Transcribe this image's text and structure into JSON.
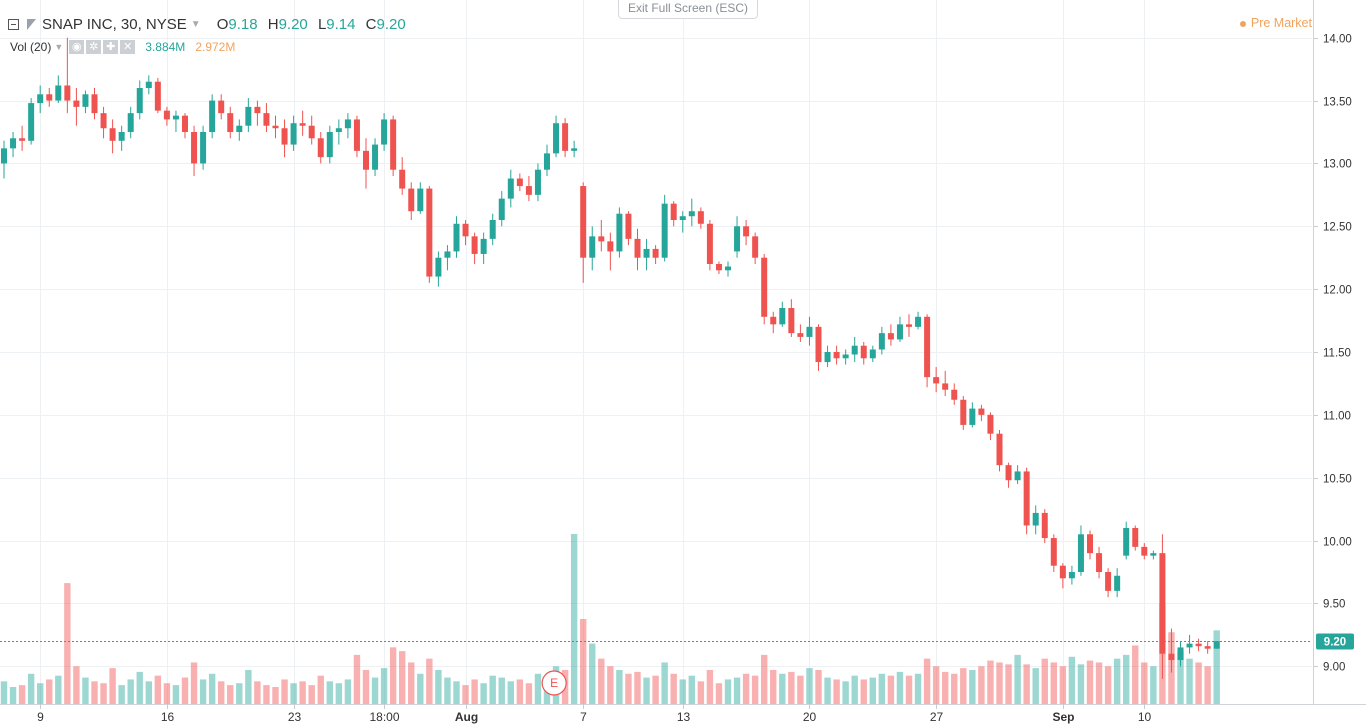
{
  "header": {
    "symbol": "SNAP INC, 30, NYSE",
    "ohlc": [
      {
        "key": "O",
        "value": "9.18"
      },
      {
        "key": "H",
        "value": "9.20"
      },
      {
        "key": "L",
        "value": "9.14"
      },
      {
        "key": "C",
        "value": "9.20"
      }
    ],
    "volume_label": "Vol (20)",
    "volume_value": "3.884M",
    "volume_ma": "2.972M",
    "toolbar_icons": [
      "eye-icon",
      "gear-icon",
      "plus-icon",
      "close-icon"
    ]
  },
  "exit_fullscreen_label": "Exit Full Screen (ESC)",
  "session_label": "Pre Market",
  "earnings_marker": "E",
  "colors": {
    "up": "#26a69a",
    "down": "#ef5350",
    "session": "#f0a35e",
    "grid": "#eef1f4",
    "price_line": "#26a69a"
  },
  "chart_data": {
    "type": "candlestick",
    "title": "SNAP INC, 30, NYSE",
    "last_price": "9.20",
    "y_ticks": [
      "14.00",
      "13.50",
      "13.00",
      "12.50",
      "12.00",
      "11.50",
      "11.00",
      "10.50",
      "10.00",
      "9.50",
      "9.00"
    ],
    "ylim": [
      8.7,
      14.3
    ],
    "x_ticks": [
      {
        "label": "9",
        "bar": 4,
        "bold": false
      },
      {
        "label": "16",
        "bar": 18,
        "bold": false
      },
      {
        "label": "23",
        "bar": 32,
        "bold": false
      },
      {
        "label": "18:00",
        "bar": 42,
        "bold": false
      },
      {
        "label": "Aug",
        "bar": 51,
        "bold": true
      },
      {
        "label": "7",
        "bar": 64,
        "bold": false
      },
      {
        "label": "13",
        "bar": 75,
        "bold": false
      },
      {
        "label": "20",
        "bar": 89,
        "bold": false
      },
      {
        "label": "27",
        "bar": 103,
        "bold": false
      },
      {
        "label": "Sep",
        "bar": 117,
        "bold": true
      },
      {
        "label": "10",
        "bar": 126,
        "bold": false
      }
    ],
    "bar_count": 135,
    "earnings_bar": 63,
    "ohlc": [
      [
        13.0,
        13.18,
        12.88,
        13.12
      ],
      [
        13.12,
        13.25,
        13.05,
        13.2
      ],
      [
        13.2,
        13.3,
        13.1,
        13.18
      ],
      [
        13.18,
        13.52,
        13.15,
        13.48
      ],
      [
        13.48,
        13.62,
        13.4,
        13.55
      ],
      [
        13.55,
        13.6,
        13.45,
        13.5
      ],
      [
        13.5,
        13.7,
        13.48,
        13.62
      ],
      [
        13.62,
        14.0,
        13.4,
        13.5
      ],
      [
        13.5,
        13.6,
        13.3,
        13.45
      ],
      [
        13.45,
        13.58,
        13.4,
        13.55
      ],
      [
        13.55,
        13.6,
        13.35,
        13.4
      ],
      [
        13.4,
        13.45,
        13.2,
        13.28
      ],
      [
        13.28,
        13.35,
        13.08,
        13.18
      ],
      [
        13.18,
        13.3,
        13.1,
        13.25
      ],
      [
        13.25,
        13.45,
        13.2,
        13.4
      ],
      [
        13.4,
        13.66,
        13.35,
        13.6
      ],
      [
        13.6,
        13.7,
        13.55,
        13.65
      ],
      [
        13.65,
        13.68,
        13.4,
        13.42
      ],
      [
        13.42,
        13.45,
        13.3,
        13.35
      ],
      [
        13.35,
        13.42,
        13.25,
        13.38
      ],
      [
        13.38,
        13.4,
        13.2,
        13.25
      ],
      [
        13.25,
        13.3,
        12.9,
        13.0
      ],
      [
        13.0,
        13.3,
        12.95,
        13.25
      ],
      [
        13.25,
        13.55,
        13.2,
        13.5
      ],
      [
        13.5,
        13.55,
        13.35,
        13.4
      ],
      [
        13.4,
        13.45,
        13.2,
        13.25
      ],
      [
        13.25,
        13.35,
        13.18,
        13.3
      ],
      [
        13.3,
        13.52,
        13.25,
        13.45
      ],
      [
        13.45,
        13.5,
        13.3,
        13.4
      ],
      [
        13.4,
        13.48,
        13.25,
        13.3
      ],
      [
        13.3,
        13.38,
        13.2,
        13.28
      ],
      [
        13.28,
        13.35,
        13.05,
        13.15
      ],
      [
        13.15,
        13.38,
        13.1,
        13.32
      ],
      [
        13.32,
        13.42,
        13.22,
        13.3
      ],
      [
        13.3,
        13.38,
        13.15,
        13.2
      ],
      [
        13.2,
        13.25,
        13.0,
        13.05
      ],
      [
        13.05,
        13.3,
        13.0,
        13.25
      ],
      [
        13.25,
        13.35,
        13.15,
        13.28
      ],
      [
        13.28,
        13.4,
        13.2,
        13.35
      ],
      [
        13.35,
        13.38,
        13.05,
        13.1
      ],
      [
        13.1,
        13.2,
        12.8,
        12.95
      ],
      [
        12.95,
        13.2,
        12.9,
        13.15
      ],
      [
        13.15,
        13.4,
        13.1,
        13.35
      ],
      [
        13.35,
        13.38,
        12.9,
        12.95
      ],
      [
        12.95,
        13.05,
        12.75,
        12.8
      ],
      [
        12.8,
        12.85,
        12.55,
        12.62
      ],
      [
        12.62,
        12.85,
        12.6,
        12.8
      ],
      [
        12.8,
        12.82,
        12.05,
        12.1
      ],
      [
        12.1,
        12.3,
        12.02,
        12.25
      ],
      [
        12.25,
        12.35,
        12.15,
        12.3
      ],
      [
        12.3,
        12.58,
        12.25,
        12.52
      ],
      [
        12.52,
        12.55,
        12.35,
        12.42
      ],
      [
        12.42,
        12.45,
        12.2,
        12.28
      ],
      [
        12.28,
        12.45,
        12.2,
        12.4
      ],
      [
        12.4,
        12.6,
        12.35,
        12.55
      ],
      [
        12.55,
        12.78,
        12.5,
        12.72
      ],
      [
        12.72,
        12.95,
        12.65,
        12.88
      ],
      [
        12.88,
        12.92,
        12.78,
        12.82
      ],
      [
        12.82,
        12.9,
        12.7,
        12.75
      ],
      [
        12.75,
        13.0,
        12.7,
        12.95
      ],
      [
        12.95,
        13.15,
        12.9,
        13.08
      ],
      [
        13.08,
        13.38,
        13.05,
        13.32
      ],
      [
        13.32,
        13.36,
        13.05,
        13.1
      ],
      [
        13.1,
        13.18,
        13.05,
        13.12
      ],
      [
        12.82,
        12.85,
        12.05,
        12.25
      ],
      [
        12.25,
        12.5,
        12.15,
        12.42
      ],
      [
        12.42,
        12.55,
        12.3,
        12.38
      ],
      [
        12.38,
        12.45,
        12.15,
        12.3
      ],
      [
        12.3,
        12.65,
        12.25,
        12.6
      ],
      [
        12.6,
        12.62,
        12.35,
        12.4
      ],
      [
        12.4,
        12.48,
        12.15,
        12.25
      ],
      [
        12.25,
        12.4,
        12.15,
        12.32
      ],
      [
        12.32,
        12.35,
        12.2,
        12.25
      ],
      [
        12.25,
        12.75,
        12.22,
        12.68
      ],
      [
        12.68,
        12.7,
        12.5,
        12.55
      ],
      [
        12.55,
        12.62,
        12.45,
        12.58
      ],
      [
        12.58,
        12.72,
        12.5,
        12.62
      ],
      [
        12.62,
        12.65,
        12.48,
        12.52
      ],
      [
        12.52,
        12.55,
        12.15,
        12.2
      ],
      [
        12.2,
        12.22,
        12.12,
        12.15
      ],
      [
        12.15,
        12.22,
        12.1,
        12.18
      ],
      [
        12.3,
        12.58,
        12.25,
        12.5
      ],
      [
        12.5,
        12.55,
        12.35,
        12.42
      ],
      [
        12.42,
        12.45,
        12.2,
        12.25
      ],
      [
        12.25,
        12.28,
        11.72,
        11.78
      ],
      [
        11.78,
        11.82,
        11.65,
        11.72
      ],
      [
        11.72,
        11.9,
        11.7,
        11.85
      ],
      [
        11.85,
        11.92,
        11.62,
        11.65
      ],
      [
        11.65,
        11.72,
        11.58,
        11.62
      ],
      [
        11.62,
        11.78,
        11.55,
        11.7
      ],
      [
        11.7,
        11.72,
        11.35,
        11.42
      ],
      [
        11.42,
        11.55,
        11.38,
        11.5
      ],
      [
        11.5,
        11.55,
        11.4,
        11.45
      ],
      [
        11.45,
        11.52,
        11.4,
        11.48
      ],
      [
        11.48,
        11.62,
        11.42,
        11.55
      ],
      [
        11.55,
        11.58,
        11.4,
        11.45
      ],
      [
        11.45,
        11.55,
        11.42,
        11.52
      ],
      [
        11.52,
        11.7,
        11.48,
        11.65
      ],
      [
        11.65,
        11.72,
        11.55,
        11.6
      ],
      [
        11.6,
        11.78,
        11.58,
        11.72
      ],
      [
        11.72,
        11.8,
        11.62,
        11.7
      ],
      [
        11.7,
        11.82,
        11.68,
        11.78
      ],
      [
        11.78,
        11.8,
        11.22,
        11.3
      ],
      [
        11.3,
        11.38,
        11.18,
        11.25
      ],
      [
        11.25,
        11.35,
        11.15,
        11.2
      ],
      [
        11.2,
        11.25,
        11.08,
        11.12
      ],
      [
        11.12,
        11.15,
        10.88,
        10.92
      ],
      [
        10.92,
        11.1,
        10.9,
        11.05
      ],
      [
        11.05,
        11.08,
        10.95,
        11.0
      ],
      [
        11.0,
        11.02,
        10.8,
        10.85
      ],
      [
        10.85,
        10.88,
        10.55,
        10.6
      ],
      [
        10.6,
        10.62,
        10.42,
        10.48
      ],
      [
        10.48,
        10.6,
        10.45,
        10.55
      ],
      [
        10.55,
        10.58,
        10.05,
        10.12
      ],
      [
        10.12,
        10.28,
        10.05,
        10.22
      ],
      [
        10.22,
        10.25,
        9.98,
        10.02
      ],
      [
        10.02,
        10.05,
        9.75,
        9.8
      ],
      [
        9.8,
        9.82,
        9.62,
        9.7
      ],
      [
        9.7,
        9.8,
        9.65,
        9.75
      ],
      [
        9.75,
        10.12,
        9.72,
        10.05
      ],
      [
        10.05,
        10.08,
        9.85,
        9.9
      ],
      [
        9.9,
        9.95,
        9.7,
        9.75
      ],
      [
        9.75,
        9.78,
        9.55,
        9.6
      ],
      [
        9.6,
        9.78,
        9.55,
        9.72
      ],
      [
        9.88,
        10.15,
        9.85,
        10.1
      ],
      [
        10.1,
        10.12,
        9.92,
        9.95
      ],
      [
        9.95,
        9.98,
        9.85,
        9.88
      ],
      [
        9.88,
        9.92,
        9.85,
        9.9
      ],
      [
        9.9,
        10.05,
        8.9,
        9.1
      ],
      [
        9.1,
        9.3,
        8.95,
        9.05
      ],
      [
        9.05,
        9.2,
        9.0,
        9.15
      ],
      [
        9.15,
        9.25,
        9.1,
        9.18
      ],
      [
        9.18,
        9.22,
        9.12,
        9.16
      ],
      [
        9.16,
        9.2,
        9.1,
        9.14
      ],
      [
        9.14,
        9.2,
        9.14,
        9.2
      ]
    ],
    "volume": [
      1.2,
      0.9,
      1.0,
      1.6,
      1.1,
      1.3,
      1.5,
      6.4,
      2.0,
      1.4,
      1.2,
      1.1,
      1.9,
      1.0,
      1.3,
      1.7,
      1.2,
      1.5,
      1.1,
      1.0,
      1.4,
      2.2,
      1.3,
      1.6,
      1.2,
      1.0,
      1.1,
      1.8,
      1.2,
      1.0,
      0.9,
      1.3,
      1.1,
      1.2,
      1.0,
      1.5,
      1.2,
      1.1,
      1.3,
      2.6,
      1.8,
      1.4,
      1.9,
      3.0,
      2.8,
      2.2,
      1.6,
      2.4,
      1.8,
      1.4,
      1.2,
      1.0,
      1.3,
      1.1,
      1.5,
      1.4,
      1.2,
      1.3,
      1.1,
      1.6,
      1.4,
      2.0,
      1.8,
      9.0,
      4.5,
      3.2,
      2.4,
      2.0,
      1.8,
      1.6,
      1.7,
      1.4,
      1.5,
      2.2,
      1.6,
      1.3,
      1.5,
      1.2,
      1.8,
      1.1,
      1.3,
      1.4,
      1.6,
      1.5,
      2.6,
      1.8,
      1.6,
      1.7,
      1.5,
      1.9,
      1.8,
      1.4,
      1.3,
      1.2,
      1.5,
      1.3,
      1.4,
      1.6,
      1.5,
      1.7,
      1.5,
      1.6,
      2.4,
      2.0,
      1.7,
      1.6,
      1.9,
      1.8,
      2.0,
      2.3,
      2.2,
      2.1,
      2.6,
      2.1,
      1.9,
      2.4,
      2.2,
      2.0,
      2.5,
      2.1,
      2.3,
      2.2,
      2.0,
      2.4,
      2.6,
      3.1,
      2.2,
      2.0,
      5.3,
      3.8,
      2.8,
      2.4,
      2.2,
      2.0,
      3.9
    ]
  }
}
